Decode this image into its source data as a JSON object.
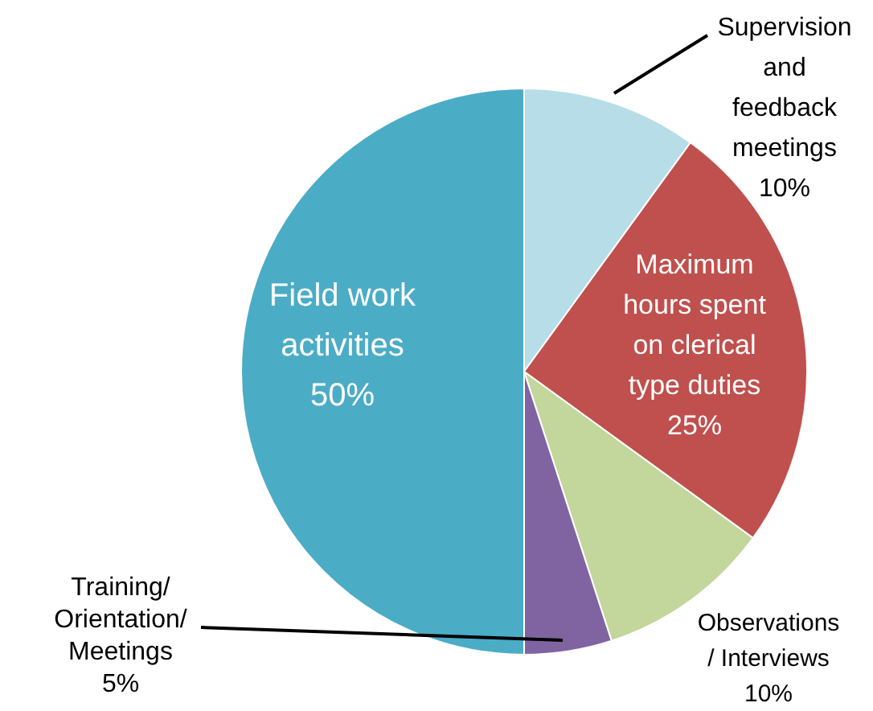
{
  "chart_data": {
    "type": "pie",
    "categories": [
      "Supervision and feedback meetings",
      "Maximum hours spent on clerical type duties",
      "Observations / Interviews",
      "Training/ Orientation/ Meetings",
      "Field work activities"
    ],
    "values": [
      10,
      25,
      10,
      5,
      50
    ],
    "colors": [
      "#b7dde8",
      "#c0504d",
      "#c3d69b",
      "#8064a2",
      "#4bacc6"
    ],
    "value_labels": [
      "10%",
      "25%",
      "10%",
      "5%",
      "50%"
    ],
    "legend": false
  }
}
